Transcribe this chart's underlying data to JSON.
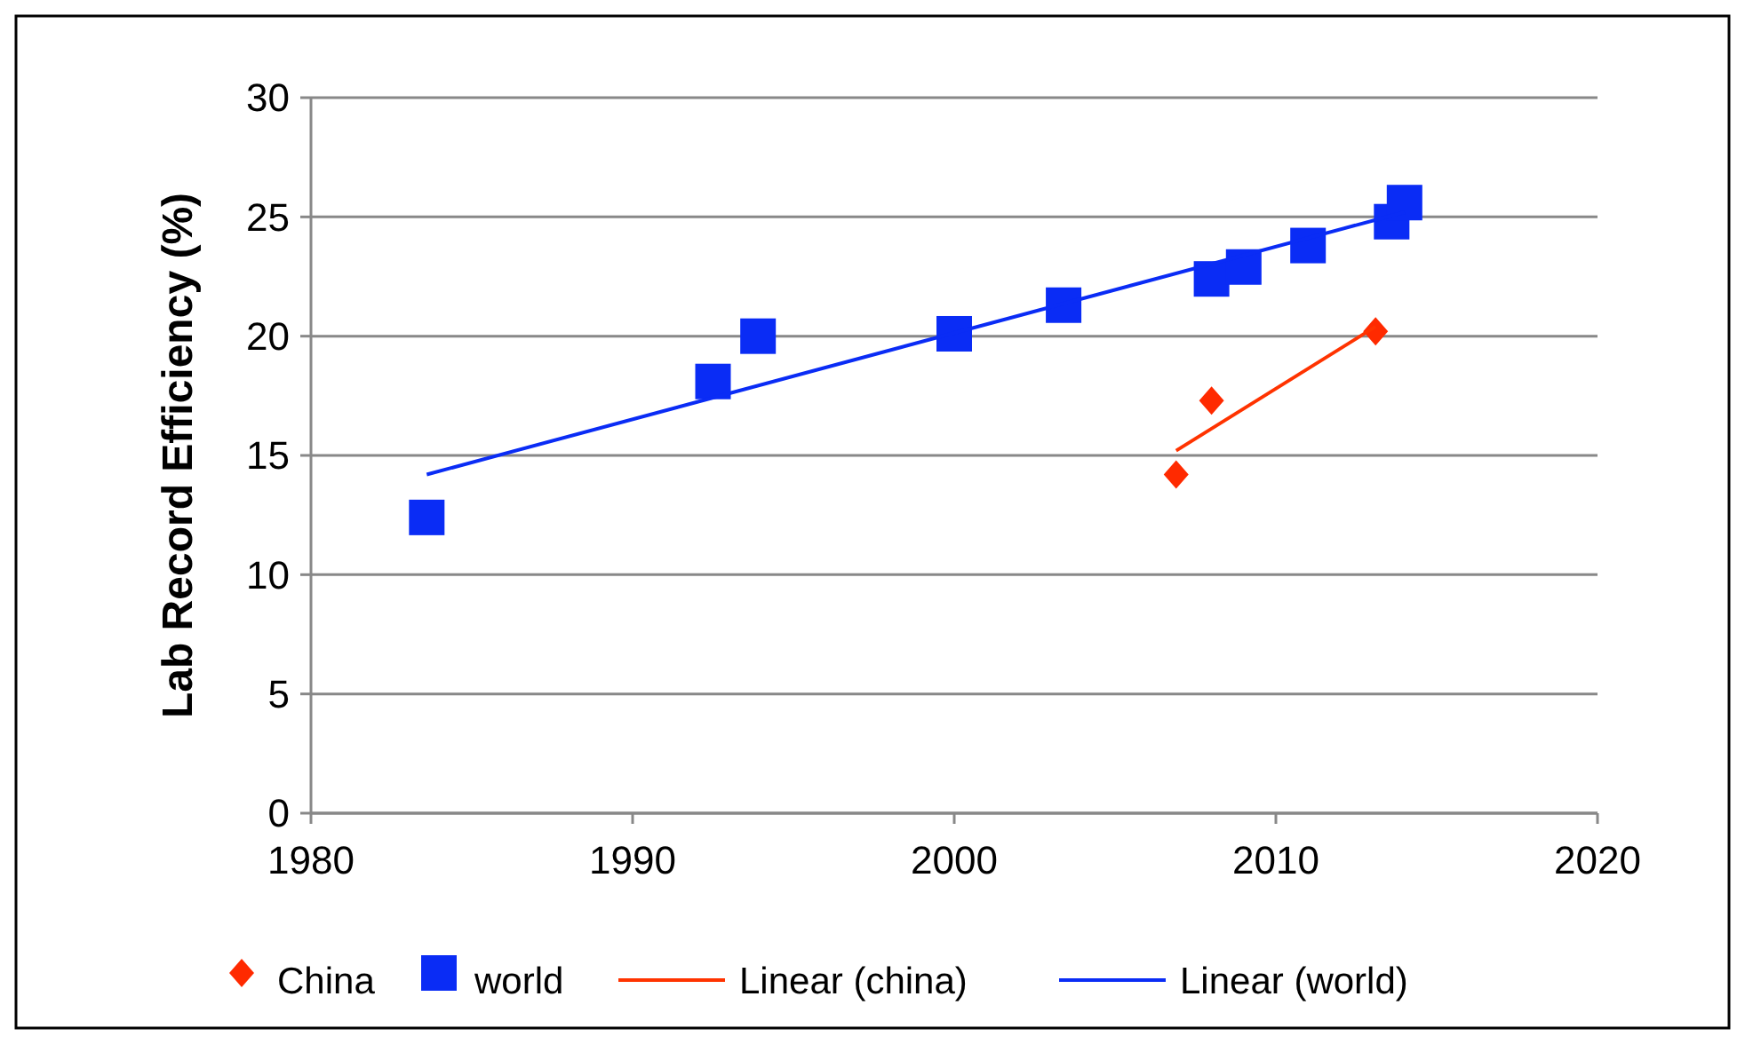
{
  "chart_data": {
    "type": "scatter",
    "ylabel": "Lab Record Efficiency (%)",
    "xlim": [
      1980,
      2020
    ],
    "xticks": [
      1980,
      1990,
      2000,
      2010,
      2020
    ],
    "ylim": [
      0,
      30
    ],
    "yticks": [
      0,
      5,
      10,
      15,
      20,
      25,
      30
    ],
    "grid": "y",
    "legend": "bottom",
    "series": [
      {
        "name": "China",
        "marker": "diamond",
        "color": "#ff2a00",
        "x": [
          2006.9,
          2008.0,
          2013.1
        ],
        "values": [
          14.2,
          17.3,
          20.2
        ]
      },
      {
        "name": "world",
        "marker": "square",
        "color": "#0a2cf5",
        "x": [
          1983.6,
          1992.5,
          1993.9,
          2000.0,
          2003.4,
          2008.0,
          2009.0,
          2011.0,
          2013.6,
          2014.0
        ],
        "values": [
          12.4,
          18.1,
          20.0,
          20.1,
          21.3,
          22.4,
          22.9,
          23.8,
          24.8,
          25.6
        ]
      },
      {
        "name": "Linear (china)",
        "type": "line",
        "marker": "none",
        "color": "#ff3300",
        "x": [
          2006.9,
          2013.1
        ],
        "values": [
          15.2,
          20.4
        ]
      },
      {
        "name": "Linear (world)",
        "type": "line",
        "marker": "none",
        "color": "#0a2cf5",
        "x": [
          1983.6,
          2014.0
        ],
        "values": [
          14.2,
          25.2
        ]
      }
    ]
  }
}
